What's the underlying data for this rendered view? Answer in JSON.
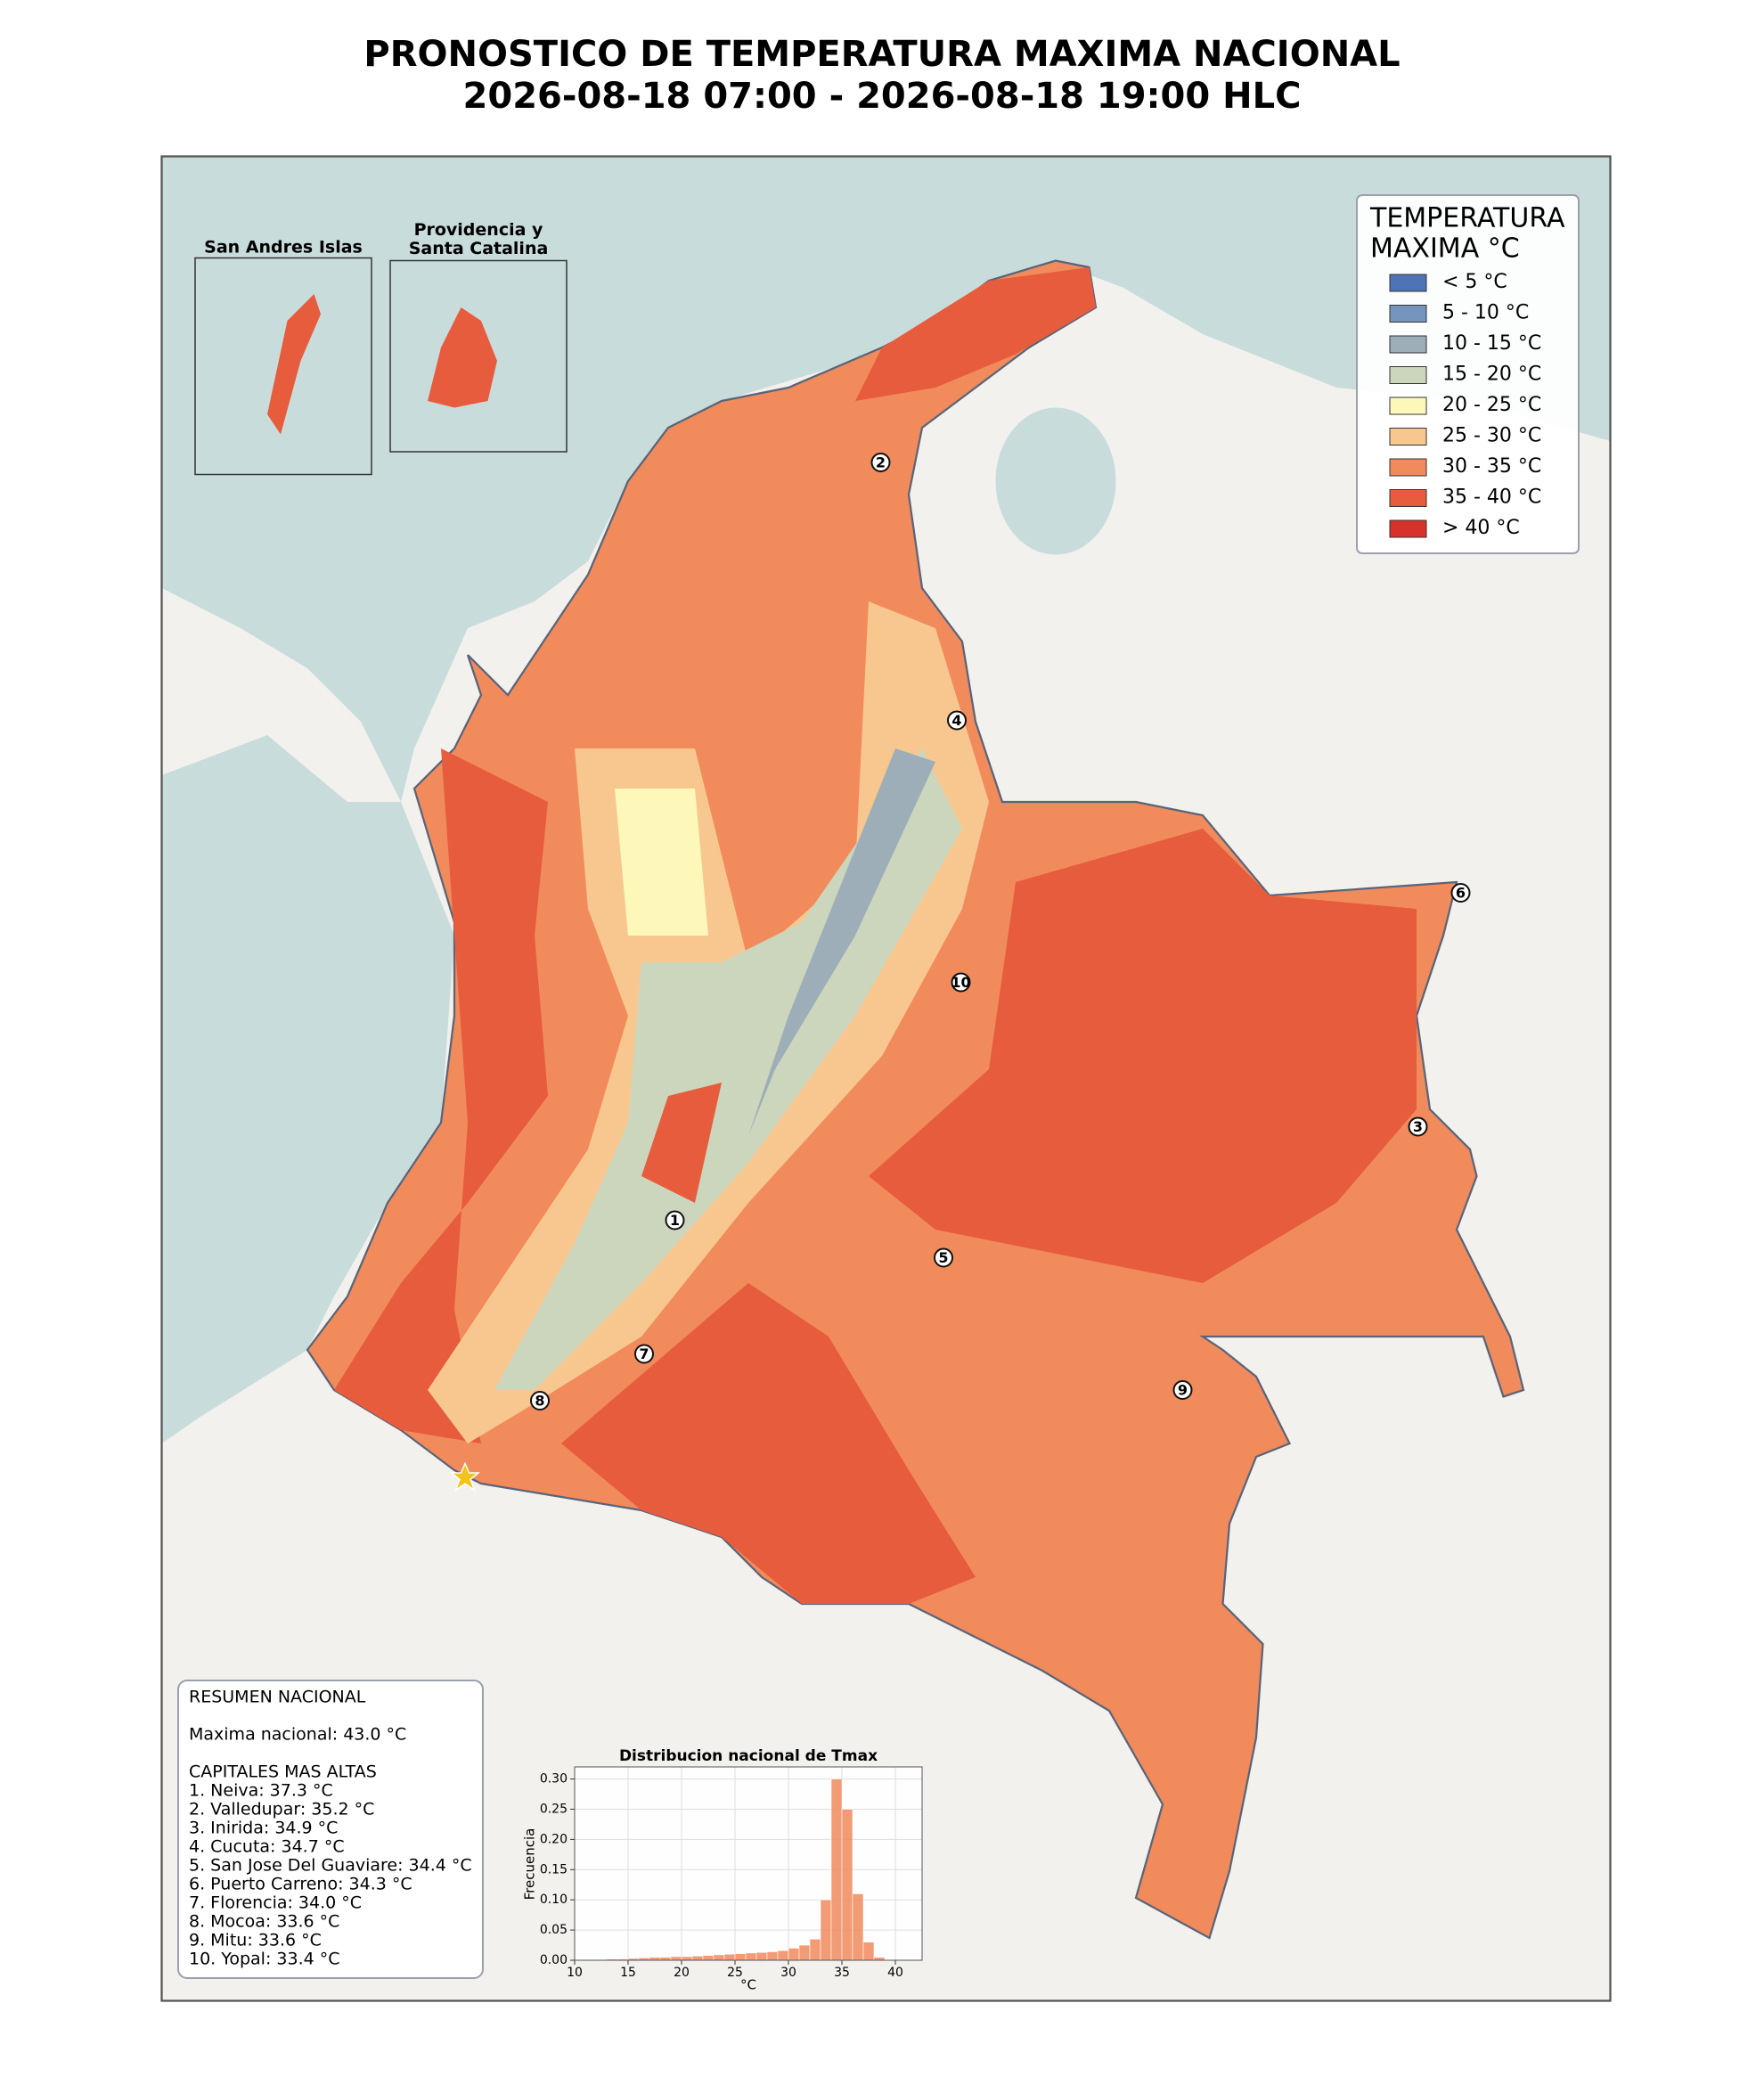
{
  "title": [
    "PRONOSTICO DE TEMPERATURA MAXIMA NACIONAL",
    "2026-08-18 07:00 - 2026-08-18 19:00 HLC"
  ],
  "insets": [
    "San Andres Islas",
    "Providencia y\nSanta Catalina"
  ],
  "legend": {
    "title": [
      "TEMPERATURA",
      "MAXIMA °C"
    ],
    "entries": [
      {
        "label": "< 5 °C",
        "color": "#4e74b7"
      },
      {
        "label": "5 - 10 °C",
        "color": "#7495bd"
      },
      {
        "label": "10 - 15 °C",
        "color": "#9eaeb8"
      },
      {
        "label": "15 - 20 °C",
        "color": "#ccd6bd"
      },
      {
        "label": "20 - 25 °C",
        "color": "#fdf8ba"
      },
      {
        "label": "25 - 30 °C",
        "color": "#f8c78f"
      },
      {
        "label": "30 - 35 °C",
        "color": "#f18b5c"
      },
      {
        "label": "35 - 40 °C",
        "color": "#e65c3d"
      },
      {
        "label": "> 40 °C",
        "color": "#d73229"
      }
    ]
  },
  "markers": [
    "1",
    "2",
    "3",
    "4",
    "5",
    "6",
    "7",
    "8",
    "9",
    "10"
  ],
  "summary": {
    "title": "RESUMEN NACIONAL",
    "national_max": "Maxima nacional: 43.0 °C",
    "capitals_title": "CAPITALES MAS ALTAS",
    "capitals": [
      "1. Neiva: 37.3 °C",
      "2. Valledupar: 35.2 °C",
      "3. Inirida: 34.9 °C",
      "4. Cucuta: 34.7 °C",
      "5. San Jose Del Guaviare: 34.4 °C",
      "6. Puerto Carreno: 34.3 °C",
      "7. Florencia: 34.0 °C",
      "8. Mocoa: 33.6 °C",
      "9. Mitu: 33.6 °C",
      "10. Yopal: 33.4 °C"
    ]
  },
  "chart_data": {
    "type": "histogram",
    "title": "Distribucion nacional de Tmax",
    "x_label": "°C",
    "y_label": "Frecuencia",
    "bins": [
      12,
      13,
      14,
      15,
      16,
      17,
      18,
      19,
      20,
      21,
      22,
      23,
      24,
      25,
      26,
      27,
      28,
      29,
      30,
      31,
      32,
      33,
      34,
      35,
      36,
      37,
      38,
      39
    ],
    "values": [
      0.001,
      0.002,
      0.002,
      0.003,
      0.004,
      0.005,
      0.005,
      0.006,
      0.006,
      0.007,
      0.008,
      0.009,
      0.01,
      0.011,
      0.012,
      0.013,
      0.014,
      0.016,
      0.02,
      0.025,
      0.035,
      0.1,
      0.3,
      0.25,
      0.11,
      0.03,
      0.005
    ],
    "color": "#f08a5d",
    "xlim": [
      10,
      42.5
    ],
    "xticks": [
      10,
      15,
      20,
      25,
      30,
      35,
      40
    ],
    "ylim": [
      0,
      0.32
    ],
    "yticks": [
      {
        "value": 0,
        "label": "0.00"
      },
      {
        "value": 0.05,
        "label": "0.05"
      },
      {
        "value": 0.1,
        "label": "0.10"
      },
      {
        "value": 0.15,
        "label": "0.15"
      },
      {
        "value": 0.2,
        "label": "0.20"
      },
      {
        "value": 0.25,
        "label": "0.25"
      },
      {
        "value": 0.3,
        "label": "0.30"
      }
    ],
    "grid": true
  }
}
